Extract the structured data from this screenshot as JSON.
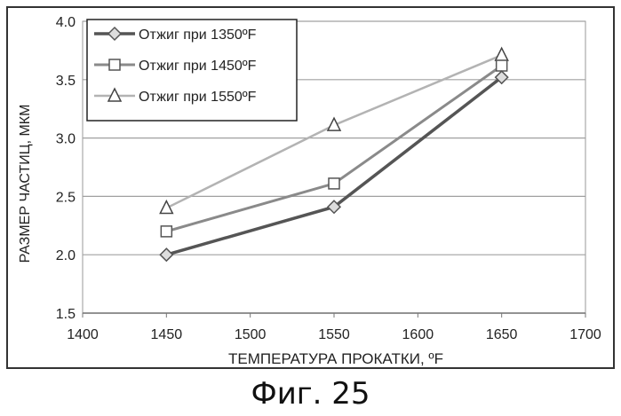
{
  "caption": "Фиг. 25",
  "chart_data": {
    "type": "line",
    "xlabel": "ТЕМПЕРАТУРА ПРОКАТКИ, ºF",
    "ylabel": "РАЗМЕР ЧАСТИЦ, МКМ",
    "xlim": [
      1400,
      1700
    ],
    "ylim": [
      1.5,
      4.0
    ],
    "xticks": [
      "1400",
      "1450",
      "1500",
      "1550",
      "1600",
      "1650",
      "1700"
    ],
    "yticks": [
      "1.5",
      "2.0",
      "2.5",
      "3.0",
      "3.5",
      "4.0"
    ],
    "grid": "horizontal",
    "legend_position": "top-left",
    "x": [
      1450,
      1550,
      1650
    ],
    "series": [
      {
        "name": "Отжиг при 1350ºF",
        "marker": "diamond",
        "color": "#555555",
        "values": [
          2.0,
          2.41,
          3.52
        ]
      },
      {
        "name": "Отжиг при 1450ºF",
        "marker": "square",
        "color": "#8a8a8a",
        "values": [
          2.2,
          2.61,
          3.62
        ]
      },
      {
        "name": "Отжиг при 1550ºF",
        "marker": "triangle",
        "color": "#b3b3b3",
        "values": [
          2.4,
          3.11,
          3.71
        ]
      }
    ]
  }
}
